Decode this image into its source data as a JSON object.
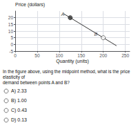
{
  "chart_data": {
    "type": "scatter",
    "title": "Price (dollars)",
    "xlabel": "Quantity (units)",
    "xlim": [
      0,
      260
    ],
    "ylim": [
      -5,
      25
    ],
    "xticks": [
      0,
      50,
      100,
      150,
      200,
      250
    ],
    "yticks": [
      -5,
      0,
      5,
      10,
      15,
      20
    ],
    "grid": true,
    "data_labels": true,
    "series": [
      {
        "type": "line",
        "color": "#333333",
        "x": [
          110,
          230
        ],
        "values": [
          23,
          -1
        ]
      },
      {
        "type": "scatter",
        "color": "#333333",
        "marker": "circle",
        "x": [
          125
        ],
        "values": [
          20
        ],
        "value_labels": [
          "A"
        ]
      },
      {
        "type": "scatter",
        "color": "#555555",
        "marker": "open_circle",
        "x": [
          200
        ],
        "values": [
          5
        ],
        "value_labels": [
          "B"
        ]
      }
    ],
    "question": "In the figure above, using the midpoint method, what is the price elasticity of\ndemand between points A and B?",
    "choices": [
      "A) 2.33",
      "B) 1.00",
      "C) 0.43",
      "D) 0.13"
    ]
  }
}
